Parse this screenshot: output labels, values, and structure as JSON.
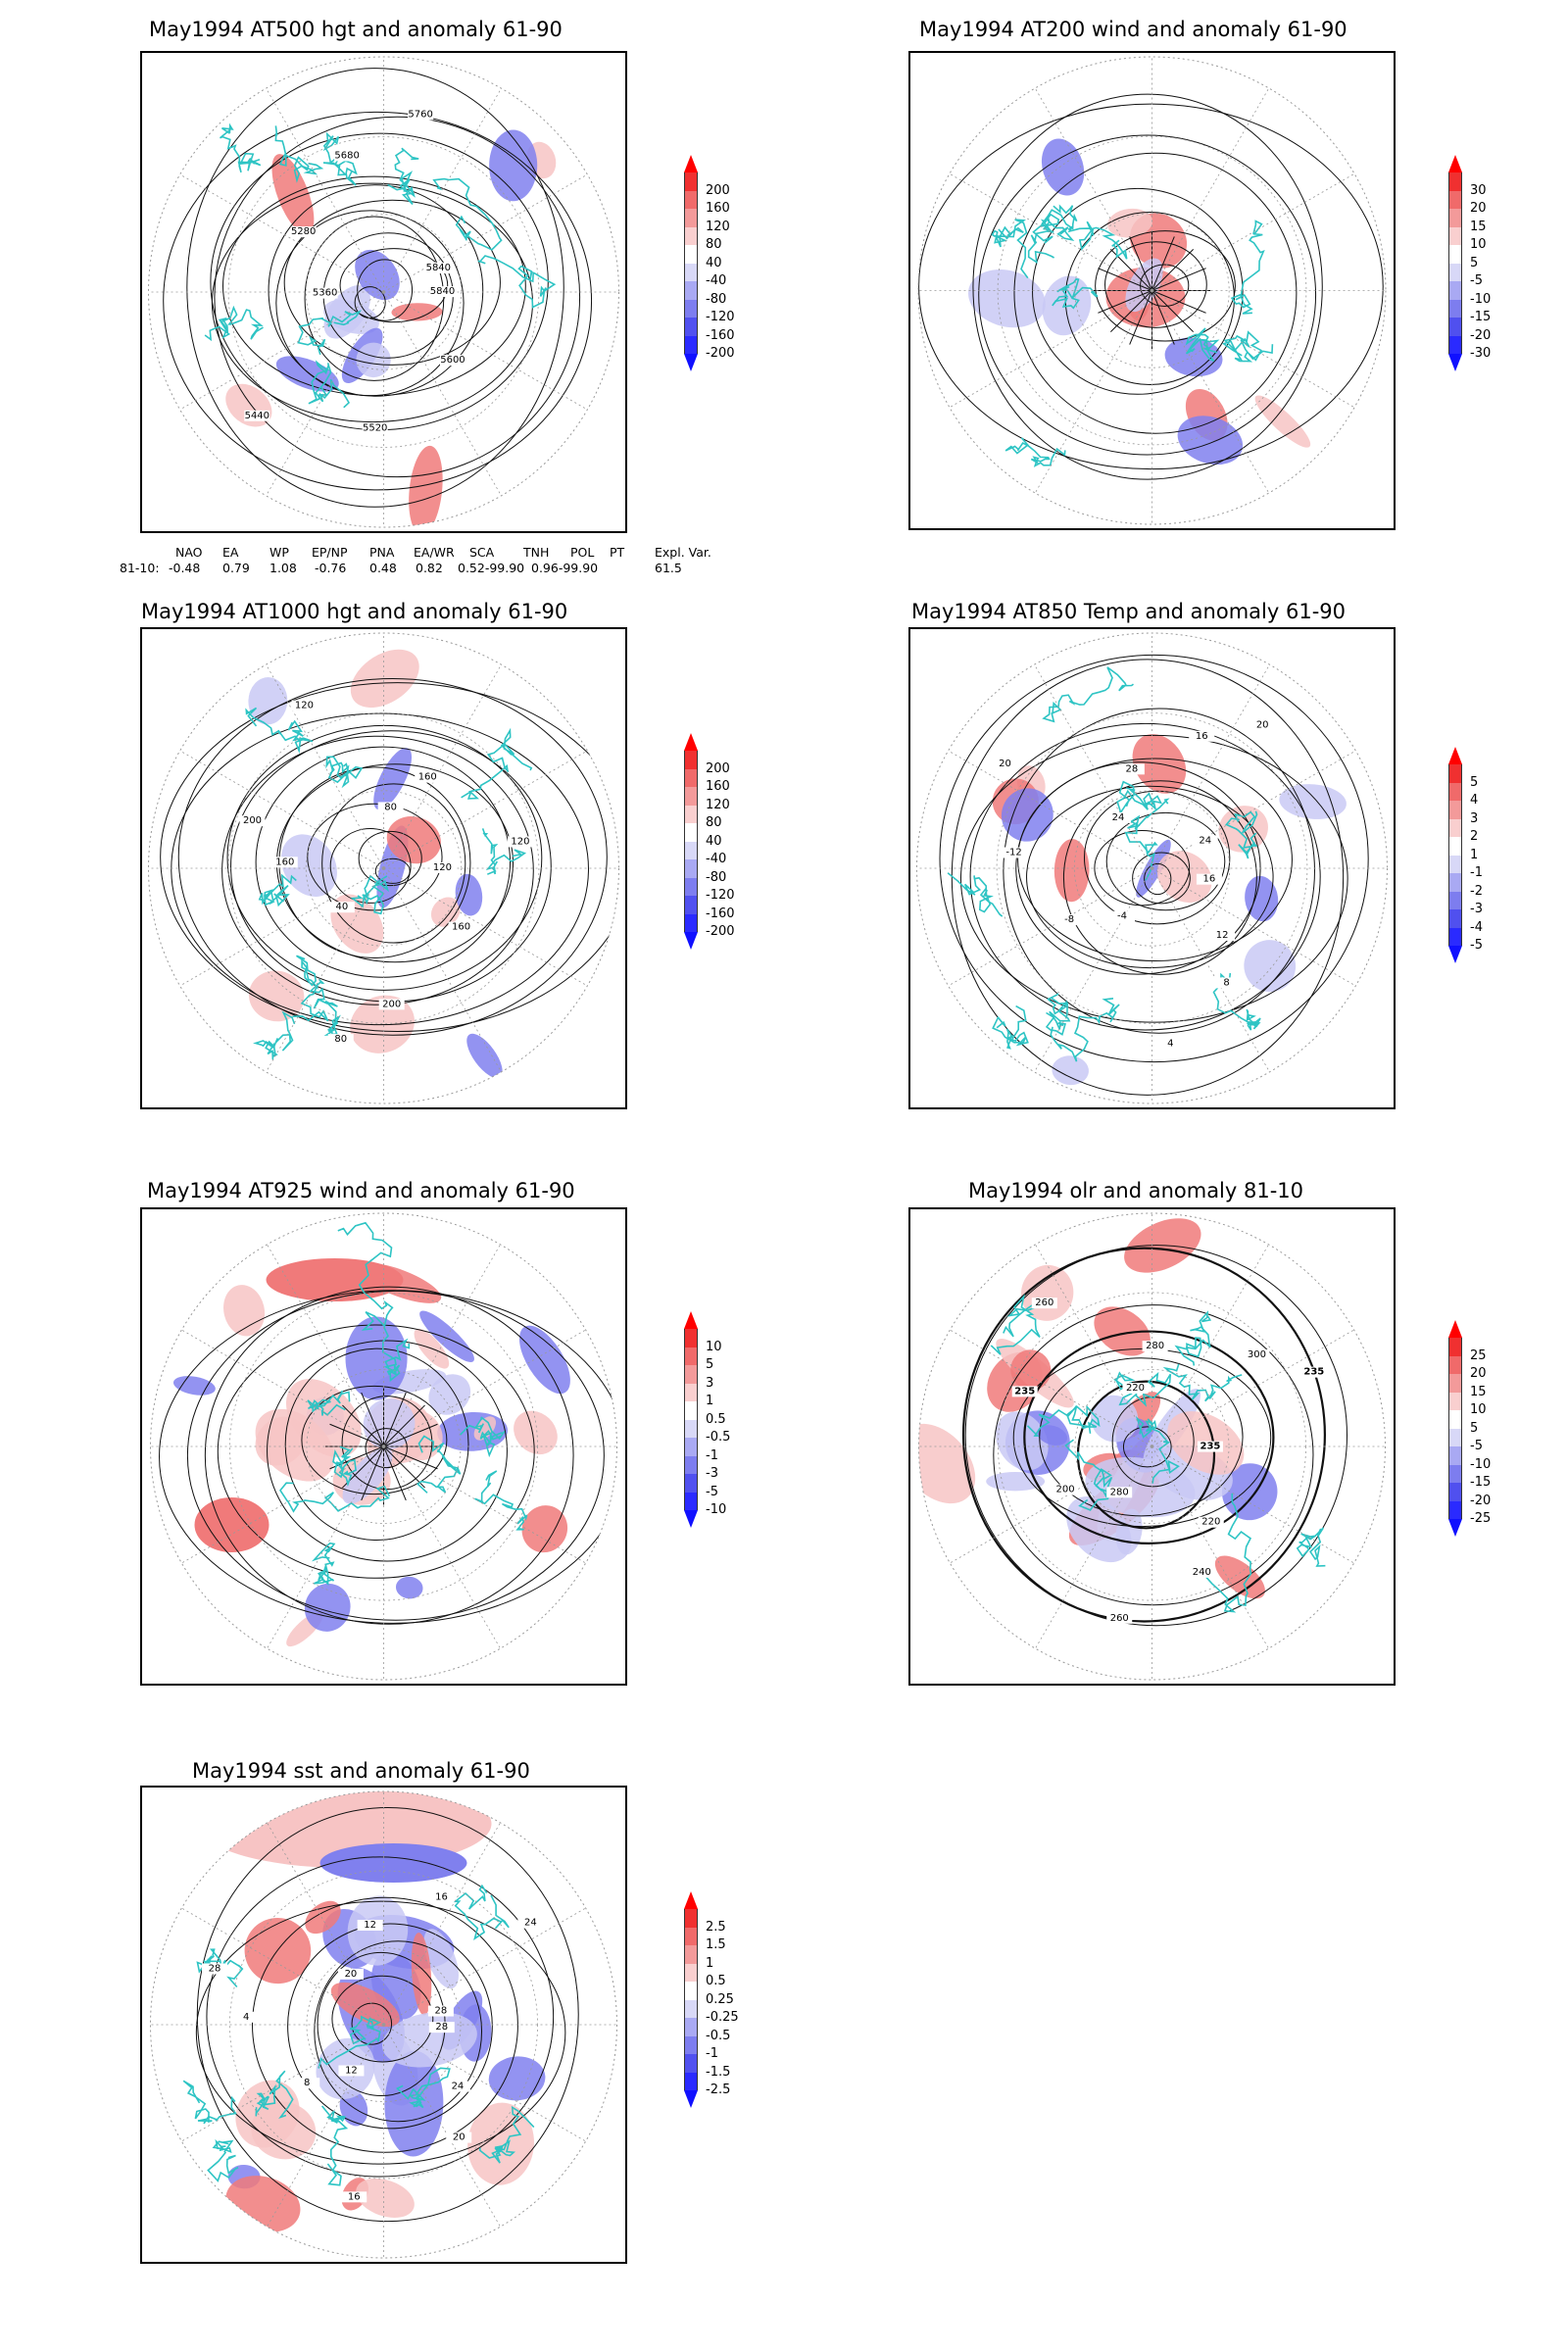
{
  "colors": {
    "coast": "#2ec4c4",
    "contour": "#111111",
    "grid": "#9a9a9a",
    "anom_pos_strong": "#ee0000",
    "anom_pos_mid": "#f07a7a",
    "anom_pos_weak": "#f7c4c4",
    "anom_neg_weak": "#c9c9f5",
    "anom_neg_mid": "#8080ee",
    "anom_neg_strong": "#1f1fff"
  },
  "panels": [
    {
      "title": "May1994 AT500 hgt and anomaly 61-90",
      "colorbar": [
        "200",
        "160",
        "120",
        "80",
        "40",
        "-40",
        "-80",
        "-120",
        "-160",
        "-200"
      ],
      "contour_labels": [
        "5840",
        "5600",
        "5520",
        "5440",
        "5360",
        "5280",
        "5680",
        "5760",
        "5840"
      ]
    },
    {
      "title": "May1994 AT200 wind and anomaly 61-90",
      "colorbar": [
        "30",
        "20",
        "15",
        "10",
        "5",
        "-5",
        "-10",
        "-15",
        "-20",
        "-30"
      ],
      "contour_labels": []
    },
    {
      "title": "May1994 AT1000 hgt and anomaly 61-90",
      "colorbar": [
        "200",
        "160",
        "120",
        "80",
        "40",
        "-40",
        "-80",
        "-120",
        "-160",
        "-200"
      ],
      "contour_labels": [
        "120",
        "160",
        "200",
        "80",
        "40",
        "160",
        "200",
        "120",
        "80",
        "160",
        "120"
      ]
    },
    {
      "title": "May1994 AT850 Temp and anomaly 61-90",
      "colorbar": [
        "5",
        "4",
        "3",
        "2",
        "1",
        "-1",
        "-2",
        "-3",
        "-4",
        "-5"
      ],
      "contour_labels": [
        "16",
        "12",
        "8",
        "4",
        "-4",
        "-8",
        "-12",
        "20",
        "24",
        "28",
        "16",
        "20",
        "24"
      ]
    },
    {
      "title": "May1994 AT925 wind and anomaly 61-90",
      "colorbar": [
        "10",
        "5",
        "3",
        "1",
        "0.5",
        "-0.5",
        "-1",
        "-3",
        "-5",
        "-10"
      ],
      "contour_labels": []
    },
    {
      "title": "May1994 olr and anomaly 81-10",
      "colorbar": [
        "25",
        "20",
        "15",
        "10",
        "5",
        "-5",
        "-10",
        "-15",
        "-20",
        "-25"
      ],
      "contour_labels": [
        "235",
        "220",
        "240",
        "260",
        "280",
        "200",
        "235",
        "260",
        "220",
        "280",
        "300",
        "235"
      ]
    },
    {
      "title": "May1994 sst and anomaly 61-90",
      "colorbar": [
        "2.5",
        "1.5",
        "1",
        "0.5",
        "0.25",
        "-0.25",
        "-0.5",
        "-1",
        "-1.5",
        "-2.5"
      ],
      "contour_labels": [
        "28",
        "24",
        "20",
        "16",
        "12",
        "8",
        "4",
        "28",
        "20",
        "12",
        "16",
        "24",
        "28"
      ]
    }
  ],
  "teleconnections": {
    "headers": [
      "NAO",
      "EA",
      "WP",
      "EP/NP",
      "PNA",
      "EA/WR",
      "SCA",
      "TNH",
      "POL",
      "PT",
      "Expl. Var."
    ],
    "row_label": "81-10:",
    "values": [
      "-0.48",
      "0.79",
      "1.08",
      "-0.76",
      "0.48",
      "0.82",
      "0.52-99.90",
      "0.96-99.90",
      "61.5"
    ]
  }
}
